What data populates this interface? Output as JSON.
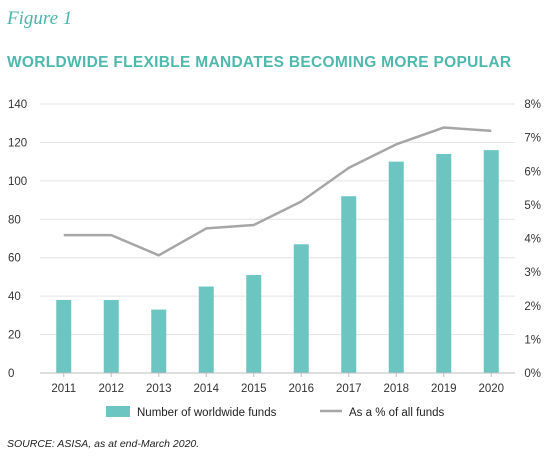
{
  "figure_label": "Figure 1",
  "title": "WORLDWIDE FLEXIBLE MANDATES BECOMING MORE POPULAR",
  "source": "SOURCE: ASISA, as at end-March 2020.",
  "colors": {
    "bar": "#6cc5c1",
    "line": "#a6a6a6",
    "accent": "#4fb8ad",
    "grid": "#e3e3e3"
  },
  "chart_data": {
    "type": "bar",
    "categories": [
      "2011",
      "2012",
      "2013",
      "2014",
      "2015",
      "2016",
      "2017",
      "2018",
      "2019",
      "2020"
    ],
    "series": [
      {
        "name": "Number of worldwide funds",
        "type": "bar",
        "axis": "left",
        "values": [
          38,
          38,
          33,
          45,
          51,
          67,
          92,
          110,
          114,
          116
        ]
      },
      {
        "name": "As a % of all funds",
        "type": "line",
        "axis": "right",
        "values": [
          4.1,
          4.1,
          3.5,
          4.3,
          4.4,
          5.1,
          6.1,
          6.8,
          7.3,
          7.2
        ]
      }
    ],
    "y_left": {
      "min": 0,
      "max": 140,
      "ticks": [
        "0",
        "20",
        "40",
        "60",
        "80",
        "100",
        "120",
        "140"
      ]
    },
    "y_right": {
      "min": 0,
      "max": 8,
      "ticks": [
        "0%",
        "1%",
        "2%",
        "3%",
        "4%",
        "5%",
        "6%",
        "7%",
        "8%"
      ]
    },
    "grid": true,
    "legend_position": "bottom"
  }
}
